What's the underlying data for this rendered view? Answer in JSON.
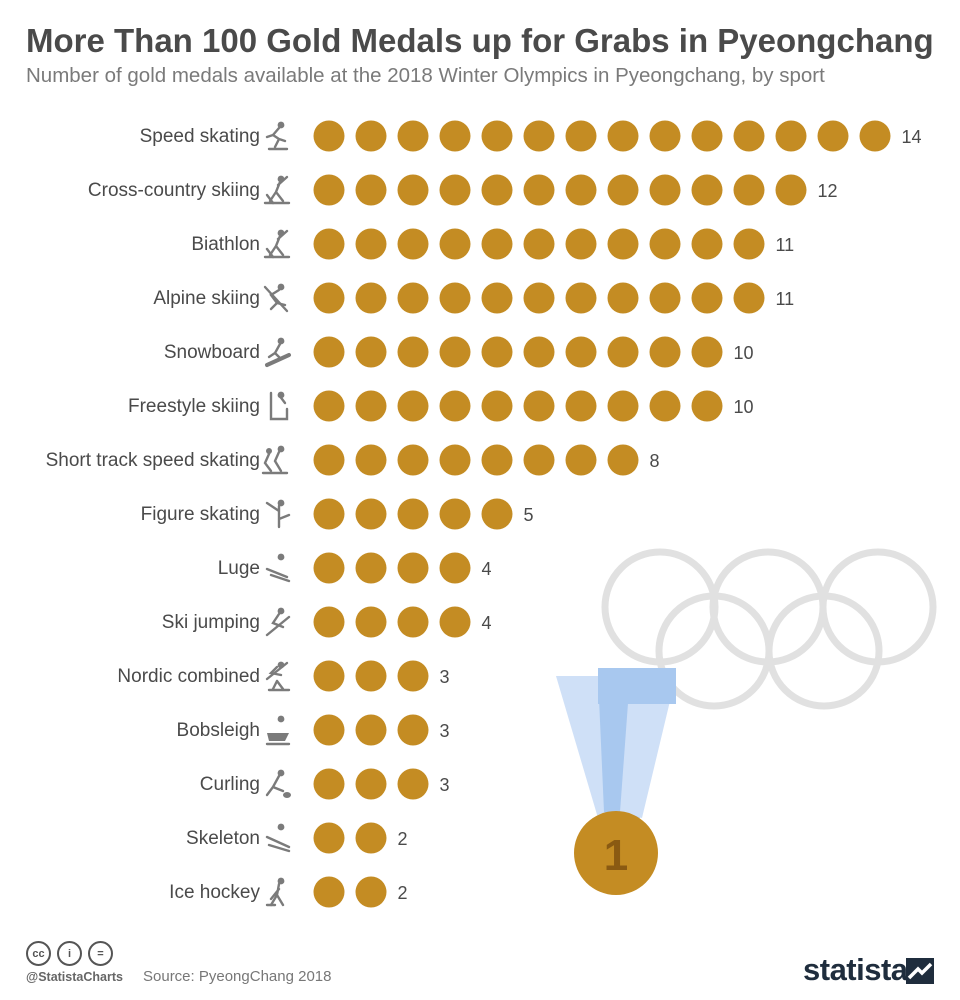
{
  "title": "More Than 100 Gold Medals up for Grabs in Pyeongchang",
  "subtitle": "Number of gold medals available at the 2018 Winter Olympics in Pyeongchang, by sport",
  "colors": {
    "medal_dot": "#c48c23",
    "icon": "#7b7b7b",
    "rings": "#e1e1e1",
    "ribbon_light": "#cfe0f7",
    "ribbon_dark": "#a8c8ef",
    "medal": "#c48c23",
    "medal_text": "#8a5a12"
  },
  "chart_data": {
    "type": "pictogram-bar",
    "unit": "one circle = one gold medal",
    "categories": [
      "Speed skating",
      "Cross-country skiing",
      "Biathlon",
      "Alpine skiing",
      "Snowboard",
      "Freestyle skiing",
      "Short track speed skating",
      "Figure skating",
      "Luge",
      "Ski jumping",
      "Nordic combined",
      "Bobsleigh",
      "Curling",
      "Skeleton",
      "Ice hockey"
    ],
    "values": [
      14,
      12,
      11,
      11,
      10,
      10,
      8,
      5,
      4,
      4,
      3,
      3,
      3,
      2,
      2
    ],
    "icons": [
      "speed-skating-icon",
      "cross-country-skiing-icon",
      "biathlon-icon",
      "alpine-skiing-icon",
      "snowboard-icon",
      "freestyle-skiing-icon",
      "short-track-icon",
      "figure-skating-icon",
      "luge-icon",
      "ski-jumping-icon",
      "nordic-combined-icon",
      "bobsleigh-icon",
      "curling-icon",
      "skeleton-icon",
      "ice-hockey-icon"
    ]
  },
  "medal_label": "1",
  "footer": {
    "cc_icons": [
      "cc",
      "by",
      "nd"
    ],
    "cc_glyphs": [
      "cc",
      "i",
      "="
    ],
    "handle": "@StatistaCharts",
    "source": "Source: PyeongChang 2018",
    "brand": "statista"
  }
}
